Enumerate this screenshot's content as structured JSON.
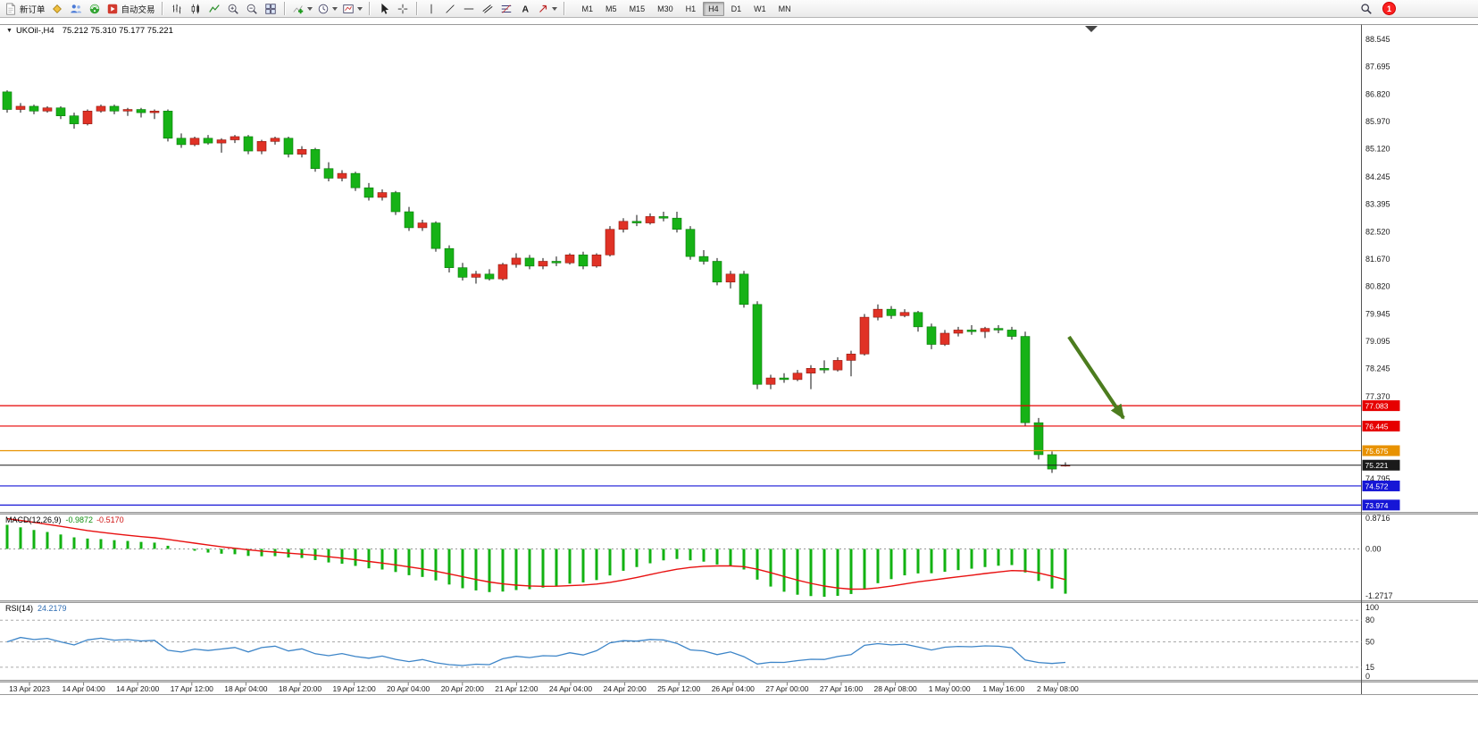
{
  "toolbar": {
    "new_order_label": "新订单",
    "autotrading_label": "自动交易",
    "timeframes": [
      "M1",
      "M5",
      "M15",
      "M30",
      "H1",
      "H4",
      "D1",
      "W1",
      "MN"
    ],
    "active_timeframe": "H4",
    "notification_count": "1"
  },
  "chart": {
    "symbol_title": "UKOil-,H4",
    "ohlc_text": "75.212 75.310 75.177 75.221",
    "bull_color": "#e03226",
    "bear_color": "#16b216",
    "wick_color": "#111111",
    "arrow_color": "#4c7c1e",
    "axis_labels": [
      "88.545",
      "87.695",
      "86.820",
      "85.970",
      "85.120",
      "84.245",
      "83.395",
      "82.520",
      "81.670",
      "80.820",
      "79.945",
      "79.095",
      "78.245",
      "77.370",
      "74.795"
    ],
    "lines": [
      {
        "label": "77.083",
        "color": "#e60000"
      },
      {
        "label": "76.445",
        "color": "#e60000"
      },
      {
        "label": "75.675",
        "color": "#e89200"
      },
      {
        "label": "75.221",
        "color": "#1a1a1a",
        "current": true
      },
      {
        "label": "74.572",
        "color": "#1616d6"
      },
      {
        "label": "73.974",
        "color": "#1616d6"
      }
    ],
    "candles": [
      [
        86.9,
        86.95,
        86.25,
        86.35
      ],
      [
        86.35,
        86.55,
        86.25,
        86.45
      ],
      [
        86.45,
        86.5,
        86.2,
        86.3
      ],
      [
        86.3,
        86.45,
        86.25,
        86.4
      ],
      [
        86.4,
        86.45,
        86.05,
        86.15
      ],
      [
        86.15,
        86.25,
        85.75,
        85.9
      ],
      [
        85.9,
        86.35,
        85.85,
        86.3
      ],
      [
        86.3,
        86.5,
        86.25,
        86.45
      ],
      [
        86.45,
        86.5,
        86.2,
        86.3
      ],
      [
        86.3,
        86.4,
        86.15,
        86.35
      ],
      [
        86.35,
        86.4,
        86.1,
        86.25
      ],
      [
        86.25,
        86.35,
        86.05,
        86.3
      ],
      [
        86.3,
        86.35,
        85.35,
        85.45
      ],
      [
        85.45,
        85.6,
        85.15,
        85.25
      ],
      [
        85.25,
        85.5,
        85.2,
        85.45
      ],
      [
        85.45,
        85.55,
        85.25,
        85.3
      ],
      [
        85.3,
        85.45,
        85.0,
        85.4
      ],
      [
        85.4,
        85.55,
        85.3,
        85.5
      ],
      [
        85.5,
        85.55,
        84.95,
        85.05
      ],
      [
        85.05,
        85.4,
        84.95,
        85.35
      ],
      [
        85.35,
        85.5,
        85.25,
        85.45
      ],
      [
        85.45,
        85.5,
        84.85,
        84.95
      ],
      [
        84.95,
        85.2,
        84.85,
        85.1
      ],
      [
        85.1,
        85.15,
        84.4,
        84.5
      ],
      [
        84.5,
        84.7,
        84.1,
        84.2
      ],
      [
        84.2,
        84.45,
        84.1,
        84.35
      ],
      [
        84.35,
        84.4,
        83.8,
        83.9
      ],
      [
        83.9,
        84.05,
        83.5,
        83.6
      ],
      [
        83.6,
        83.85,
        83.5,
        83.75
      ],
      [
        83.75,
        83.8,
        83.05,
        83.15
      ],
      [
        83.15,
        83.3,
        82.55,
        82.65
      ],
      [
        82.65,
        82.9,
        82.55,
        82.8
      ],
      [
        82.8,
        82.85,
        81.9,
        82.0
      ],
      [
        82.0,
        82.1,
        81.25,
        81.4
      ],
      [
        81.4,
        81.55,
        81.0,
        81.1
      ],
      [
        81.1,
        81.3,
        80.9,
        81.2
      ],
      [
        81.2,
        81.35,
        81.0,
        81.05
      ],
      [
        81.05,
        81.55,
        81.0,
        81.5
      ],
      [
        81.5,
        81.85,
        81.4,
        81.7
      ],
      [
        81.7,
        81.8,
        81.35,
        81.45
      ],
      [
        81.45,
        81.7,
        81.35,
        81.6
      ],
      [
        81.6,
        81.75,
        81.45,
        81.55
      ],
      [
        81.55,
        81.85,
        81.5,
        81.8
      ],
      [
        81.8,
        81.9,
        81.35,
        81.45
      ],
      [
        81.45,
        81.85,
        81.4,
        81.8
      ],
      [
        81.8,
        82.7,
        81.75,
        82.6
      ],
      [
        82.6,
        82.95,
        82.5,
        82.85
      ],
      [
        82.85,
        83.05,
        82.7,
        82.8
      ],
      [
        82.8,
        83.1,
        82.75,
        83.0
      ],
      [
        83.0,
        83.15,
        82.85,
        82.95
      ],
      [
        82.95,
        83.15,
        82.5,
        82.6
      ],
      [
        82.6,
        82.7,
        81.65,
        81.75
      ],
      [
        81.75,
        81.95,
        81.5,
        81.6
      ],
      [
        81.6,
        81.7,
        80.85,
        80.95
      ],
      [
        80.95,
        81.3,
        80.75,
        81.2
      ],
      [
        81.2,
        81.3,
        80.15,
        80.25
      ],
      [
        80.25,
        80.35,
        77.6,
        77.75
      ],
      [
        77.75,
        78.05,
        77.6,
        77.95
      ],
      [
        77.95,
        78.1,
        77.8,
        77.9
      ],
      [
        77.9,
        78.2,
        77.85,
        78.1
      ],
      [
        78.1,
        78.35,
        77.6,
        78.25
      ],
      [
        78.25,
        78.5,
        78.1,
        78.2
      ],
      [
        78.2,
        78.6,
        78.15,
        78.5
      ],
      [
        78.5,
        78.8,
        78.0,
        78.7
      ],
      [
        78.7,
        79.95,
        78.65,
        79.85
      ],
      [
        79.85,
        80.25,
        79.75,
        80.1
      ],
      [
        80.1,
        80.2,
        79.8,
        79.9
      ],
      [
        79.9,
        80.1,
        79.85,
        80.0
      ],
      [
        80.0,
        80.05,
        79.4,
        79.55
      ],
      [
        79.55,
        79.65,
        78.85,
        79.0
      ],
      [
        79.0,
        79.45,
        78.95,
        79.35
      ],
      [
        79.35,
        79.55,
        79.25,
        79.45
      ],
      [
        79.45,
        79.6,
        79.3,
        79.4
      ],
      [
        79.4,
        79.55,
        79.2,
        79.5
      ],
      [
        79.5,
        79.6,
        79.35,
        79.45
      ],
      [
        79.45,
        79.55,
        79.15,
        79.25
      ],
      [
        79.25,
        79.4,
        76.45,
        76.55
      ],
      [
        76.55,
        76.7,
        75.4,
        75.55
      ],
      [
        75.55,
        75.65,
        74.98,
        75.1
      ],
      [
        75.212,
        75.31,
        75.177,
        75.221
      ]
    ]
  },
  "macd": {
    "name": "MACD(12,26,9)",
    "value_main": "-0.9872",
    "value_signal": "-0.5170",
    "axis": [
      "0.8716",
      "0.00",
      "-1.2717"
    ],
    "histogram_color": "#12b212",
    "signal_color": "#e81010"
  },
  "rsi": {
    "name": "RSI(14)",
    "value": "24.2179",
    "axis": [
      {
        "label": "100",
        "v": 100
      },
      {
        "label": "80",
        "v": 80,
        "line": true
      },
      {
        "label": "50",
        "v": 50,
        "line": true
      },
      {
        "label": "15",
        "v": 15,
        "line": true
      },
      {
        "label": "0",
        "v": 0
      }
    ],
    "line_color": "#3d85c8"
  },
  "time_axis": {
    "labels": [
      "13 Apr 2023",
      "14 Apr 04:00",
      "14 Apr 20:00",
      "17 Apr 12:00",
      "18 Apr 04:00",
      "18 Apr 20:00",
      "19 Apr 12:00",
      "20 Apr 04:00",
      "20 Apr 20:00",
      "21 Apr 12:00",
      "24 Apr 04:00",
      "24 Apr 20:00",
      "25 Apr 12:00",
      "26 Apr 04:00",
      "27 Apr 00:00",
      "27 Apr 16:00",
      "28 Apr 08:00",
      "1 May 00:00",
      "1 May 16:00",
      "2 May 08:00"
    ]
  }
}
